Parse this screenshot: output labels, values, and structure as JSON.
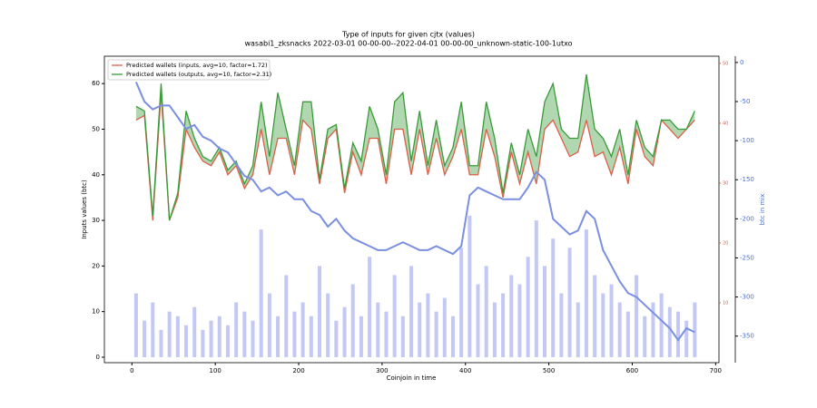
{
  "chart_data": {
    "type": "line",
    "title": "Type of inputs for given cjtx (values)",
    "subtitle": "wasabi1_zksnacks 2022-03-01 00-00-00--2022-04-01 00-00-00_unknown-static-100-1utxo",
    "xlabel": "Coinjoin in time",
    "ylabel": "Inputs values (btc)",
    "y2label": "btc in mix",
    "xlim": [
      -33,
      704
    ],
    "xticks": [
      0,
      100,
      200,
      300,
      400,
      500,
      600,
      700
    ],
    "ylim": [
      -1.2,
      66
    ],
    "yticks": [
      0,
      10,
      20,
      30,
      40,
      50,
      60
    ],
    "y2lim": [
      -384,
      8
    ],
    "y2ticks": [
      0,
      -50,
      -100,
      -150,
      -200,
      -250,
      -300,
      -350
    ],
    "y3lim": [
      0,
      51.2
    ],
    "y3ticks": [
      10,
      20,
      30,
      40,
      50
    ],
    "legend": "upper left",
    "x": [
      5,
      15,
      25,
      35,
      45,
      55,
      65,
      75,
      85,
      95,
      105,
      115,
      125,
      135,
      145,
      155,
      165,
      175,
      185,
      195,
      205,
      215,
      225,
      235,
      245,
      255,
      265,
      275,
      285,
      295,
      305,
      315,
      325,
      335,
      345,
      355,
      365,
      375,
      385,
      395,
      405,
      415,
      425,
      435,
      445,
      455,
      465,
      475,
      485,
      495,
      505,
      515,
      525,
      535,
      545,
      555,
      565,
      575,
      585,
      595,
      605,
      615,
      625,
      635,
      645,
      655,
      665,
      675
    ],
    "series": [
      {
        "name": "Predicted wallets (inputs, avg=10, factor=1.72)",
        "color": "#d9604a",
        "values": [
          52,
          53,
          30,
          58,
          30,
          35,
          50,
          46,
          43,
          42,
          45,
          40,
          42,
          37,
          40,
          50,
          40,
          48,
          48,
          40,
          52,
          50,
          38,
          48,
          50,
          36,
          45,
          40,
          48,
          48,
          38,
          50,
          50,
          40,
          50,
          40,
          48,
          40,
          44,
          50,
          40,
          40,
          50,
          44,
          35,
          45,
          38,
          45,
          38,
          50,
          52,
          48,
          44,
          45,
          52,
          44,
          45,
          40,
          46,
          38,
          50,
          44,
          42,
          52,
          50,
          48,
          50,
          52
        ]
      },
      {
        "name": "Predicted wallets (outputs, avg=10, factor=2.31)",
        "color": "#3a9a3a",
        "values": [
          55,
          54,
          31,
          60,
          30,
          36,
          54,
          48,
          44,
          43,
          46,
          41,
          43,
          38,
          42,
          56,
          44,
          58,
          50,
          42,
          56,
          56,
          39,
          50,
          51,
          37,
          47,
          43,
          55,
          50,
          40,
          56,
          58,
          43,
          54,
          42,
          52,
          42,
          46,
          56,
          42,
          42,
          56,
          48,
          36,
          47,
          40,
          50,
          44,
          56,
          60,
          50,
          48,
          48,
          62,
          50,
          48,
          44,
          50,
          40,
          52,
          46,
          44,
          52,
          52,
          50,
          50,
          54
        ]
      },
      {
        "color": "#7b8fe0",
        "axis": "y2",
        "values": [
          -25,
          -50,
          -60,
          -55,
          -55,
          -70,
          -85,
          -80,
          -95,
          -100,
          -110,
          -115,
          -130,
          -145,
          -150,
          -165,
          -160,
          -170,
          -165,
          -175,
          -175,
          -190,
          -195,
          -210,
          -200,
          -215,
          -225,
          -230,
          -235,
          -240,
          -240,
          -235,
          -230,
          -235,
          -240,
          -240,
          -235,
          -240,
          -245,
          -235,
          -170,
          -160,
          -165,
          -170,
          -175,
          -175,
          -175,
          -160,
          -140,
          -150,
          -200,
          -210,
          -220,
          -215,
          -190,
          -200,
          -240,
          -260,
          -280,
          -295,
          -300,
          -310,
          -320,
          -330,
          -340,
          -355,
          -340,
          -345
        ]
      },
      {
        "type": "bar",
        "color": "#a9b0f0",
        "values": [
          14,
          8,
          12,
          6,
          10,
          9,
          7,
          11,
          6,
          8,
          9,
          7,
          12,
          10,
          8,
          28,
          14,
          9,
          18,
          10,
          12,
          9,
          20,
          14,
          8,
          11,
          16,
          9,
          22,
          12,
          10,
          18,
          9,
          20,
          12,
          14,
          10,
          13,
          9,
          24,
          31,
          16,
          20,
          12,
          14,
          18,
          16,
          22,
          30,
          20,
          26,
          14,
          24,
          12,
          28,
          18,
          14,
          16,
          12,
          10,
          18,
          9,
          12,
          14,
          11,
          10,
          8,
          12
        ]
      }
    ]
  }
}
